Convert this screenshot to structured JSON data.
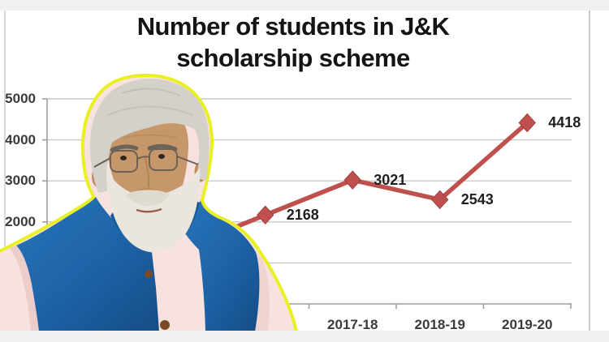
{
  "title": {
    "line1": "Number of students in J&K",
    "line2": "scholarship scheme"
  },
  "chart_data": {
    "type": "line",
    "title": "Number of students in J&K scholarship scheme",
    "series": [
      {
        "name": "Students",
        "color": "#c0504d",
        "marker": "diamond",
        "points": [
          {
            "x_label": "",
            "x_label_hidden_by_photo": true,
            "value": 2168
          },
          {
            "x_label": "2017-18",
            "value": 3021
          },
          {
            "x_label": "2018-19",
            "value": 2543
          },
          {
            "x_label": "2019-20",
            "value": 4418
          }
        ]
      }
    ],
    "x_tick_labels_visible": [
      "2017-18",
      "2018-19",
      "2019-20"
    ],
    "y_tick_labels_visible": [
      "5000",
      "4000",
      "3000",
      "2000"
    ],
    "y_gridline_values": [
      1000,
      2000,
      3000,
      4000,
      5000
    ],
    "ylim": [
      0,
      5000
    ],
    "grid": true,
    "legend": "none"
  },
  "overlay_photo": {
    "description": "Cut-out photo of PM Narendra Modi - white hair and beard, glasses, blue Nehru vest over pink kurta - with a thick bright-yellow cutout outline, overlapping the lower-left of the chart",
    "outline_color": "#e9f021"
  },
  "colors": {
    "series_red": "#c0504d",
    "grid_gray": "#c9c9c9",
    "axis_gray": "#9e9e9e",
    "label_dark": "#3a3a3a",
    "band_gray": "#f1f0ee",
    "vest_blue": "#1e63a8",
    "kurta_pink": "#f7e2df",
    "title_black": "#141414"
  }
}
